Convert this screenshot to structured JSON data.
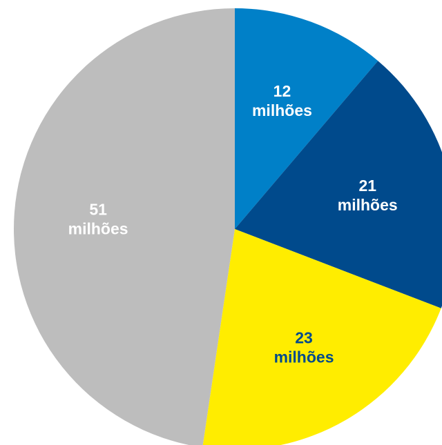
{
  "chart_data": {
    "type": "pie",
    "start_angle": "12 o'clock",
    "direction": "clockwise",
    "slices": [
      {
        "value": 12,
        "label_value": "12",
        "label_unit": "milhões",
        "color": "#0080C8",
        "label_color": "#FFFFFF"
      },
      {
        "value": 21,
        "label_value": "21",
        "label_unit": "milhões",
        "color": "#004A8C",
        "label_color": "#FFFFFF"
      },
      {
        "value": 23,
        "label_value": "23",
        "label_unit": "milhões",
        "color": "#FFED00",
        "label_color": "#004A8C"
      },
      {
        "value": 51,
        "label_value": "51",
        "label_unit": "milhões",
        "color": "#BDBDBD",
        "label_color": "#FFFFFF"
      }
    ]
  }
}
